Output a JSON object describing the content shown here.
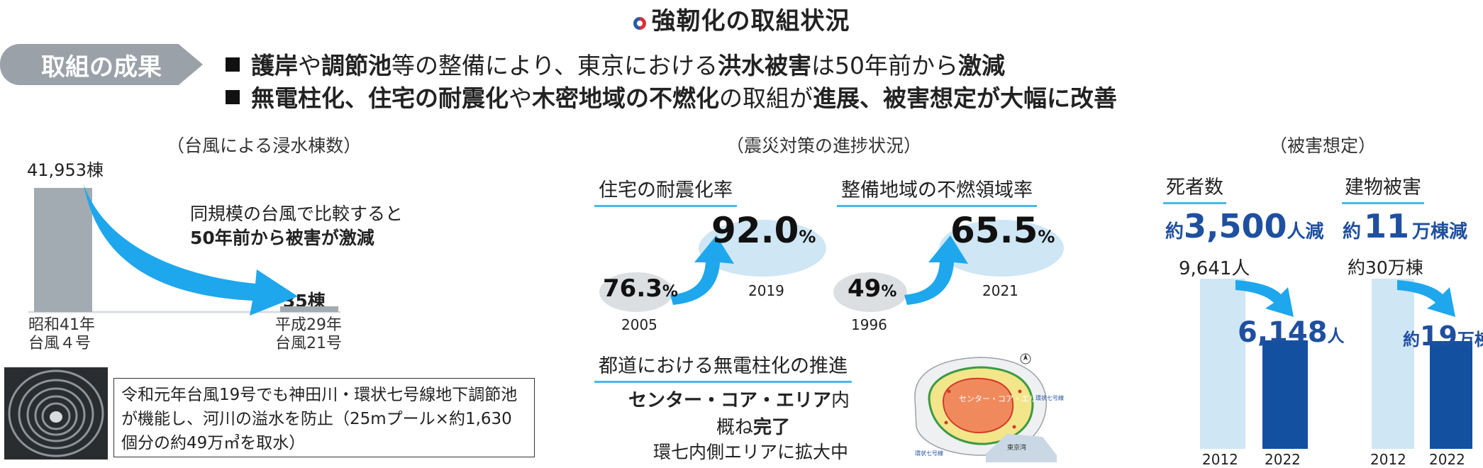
{
  "title": "強靭化の取組状況",
  "result_label": "取組の成果",
  "bullets": [
    {
      "parts": [
        [
          "b",
          "護岸"
        ],
        [
          "t",
          "や"
        ],
        [
          "b",
          "調節池"
        ],
        [
          "t",
          "等の整備により、東京における"
        ],
        [
          "b",
          "洪水被害"
        ],
        [
          "t",
          "は50年前から"
        ],
        [
          "b",
          "激減"
        ]
      ]
    },
    {
      "parts": [
        [
          "b",
          "無電柱化、住宅の耐震化"
        ],
        [
          "t",
          "や"
        ],
        [
          "b",
          "木密地域の不燃化"
        ],
        [
          "t",
          "の取組が"
        ],
        [
          "b",
          "進展、被害想定が大幅に改善"
        ]
      ]
    }
  ],
  "flood": {
    "caption": "（台風による浸水棟数）",
    "bars": [
      {
        "value_label": "41,953棟",
        "value": 41953,
        "label1": "昭和41年",
        "label2": "台風４号"
      },
      {
        "value_label": "35棟",
        "value": 35,
        "label1": "平成29年",
        "label2": "台風21号"
      }
    ],
    "message1": "同規模の台風で比較すると",
    "message2": "50年前から被害が激減",
    "note": "令和元年台風19号でも神田川・環状七号線地下調節池が機能し、河川の溢水を防止（25mプール×約1,630個分の約49万㎥を取水）"
  },
  "quake": {
    "caption": "（震災対策の進捗状況）",
    "seismic": {
      "heading": "住宅の耐震化率",
      "from": "76.3",
      "from_year": "2005",
      "to": "92.0",
      "to_year": "2019",
      "unit": "%"
    },
    "fireproof": {
      "heading": "整備地域の不燃領域率",
      "from": "49",
      "from_year": "1996",
      "to": "65.5",
      "to_year": "2021",
      "unit": "%"
    },
    "pole": {
      "heading": "都道における無電柱化の推進",
      "line1_b": "センター・コア・エリア",
      "line1_t": "内",
      "line2_t": "概ね",
      "line2_b": "完了",
      "line3": "環七内側エリアに拡大中",
      "map_labels": {
        "center": "センター・コア・エリア",
        "ring": "環状七号線",
        "bay": "東京湾",
        "ring_outer": "環状七号線"
      }
    }
  },
  "damage": {
    "caption": "（被害想定）",
    "deaths": {
      "heading": "死者数",
      "headline_pre": "約",
      "headline_num": "3,500",
      "headline_post": "人減",
      "before_label": "9,641人",
      "before": 9641,
      "after_num": "6,148",
      "after_unit": "人",
      "after": 6148,
      "year1": "2012",
      "year2": "2022"
    },
    "buildings": {
      "heading": "建物被害",
      "headline_pre": "約",
      "headline_num": "11",
      "headline_post": "万棟減",
      "before_label": "約30万棟",
      "before": 30,
      "after_pre": "約",
      "after_num": "19",
      "after_unit": "万棟",
      "after": 19,
      "year1": "2012",
      "year2": "2022"
    }
  },
  "colors": {
    "accent_blue": "#1ea7ec",
    "dark_blue": "#1450a0",
    "light_blue": "#cfe6f4",
    "gray_bar": "#a3abb2",
    "underline": "#4bb8e8"
  }
}
